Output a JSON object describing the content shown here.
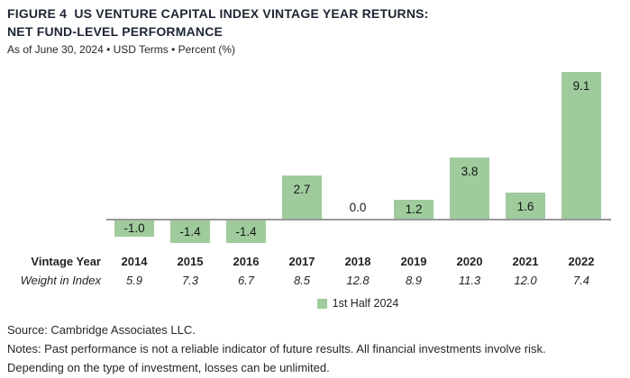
{
  "header": {
    "title_line1": "FIGURE 4  US VENTURE CAPITAL INDEX VINTAGE YEAR RETURNS:",
    "title_line2": "NET FUND-LEVEL PERFORMANCE",
    "subtitle": "As of June 30, 2024 • USD Terms • Percent (%)"
  },
  "chart_data": {
    "type": "bar",
    "categories": [
      "2014",
      "2015",
      "2016",
      "2017",
      "2018",
      "2019",
      "2020",
      "2021",
      "2022"
    ],
    "values": [
      -1.0,
      -1.4,
      -1.4,
      2.7,
      0.0,
      1.2,
      3.8,
      1.6,
      9.1
    ],
    "weights_in_index": [
      5.9,
      7.3,
      6.7,
      8.5,
      12.8,
      8.9,
      11.3,
      12.0,
      7.4
    ],
    "row_labels": {
      "years": "Vintage Year",
      "weights": "Weight in Index"
    },
    "legend": {
      "label": "1st Half 2024",
      "position": "bottom-center"
    },
    "title": "US Venture Capital Index Vintage Year Returns: Net Fund-Level Performance",
    "xlabel": "Vintage Year",
    "ylabel": "Percent (%)",
    "ylim": [
      -1.5,
      9.5
    ],
    "grid": false,
    "bar_color": "#9fcb9d",
    "axis_color": "#999999",
    "value_label_color": "#17181a"
  },
  "footer": {
    "source": "Source: Cambridge Associates LLC.",
    "notes_line1": "Notes: Past performance is not a reliable indicator of future results. All financial investments involve risk.",
    "notes_line2": "Depending on the type of investment, losses can be unlimited."
  }
}
